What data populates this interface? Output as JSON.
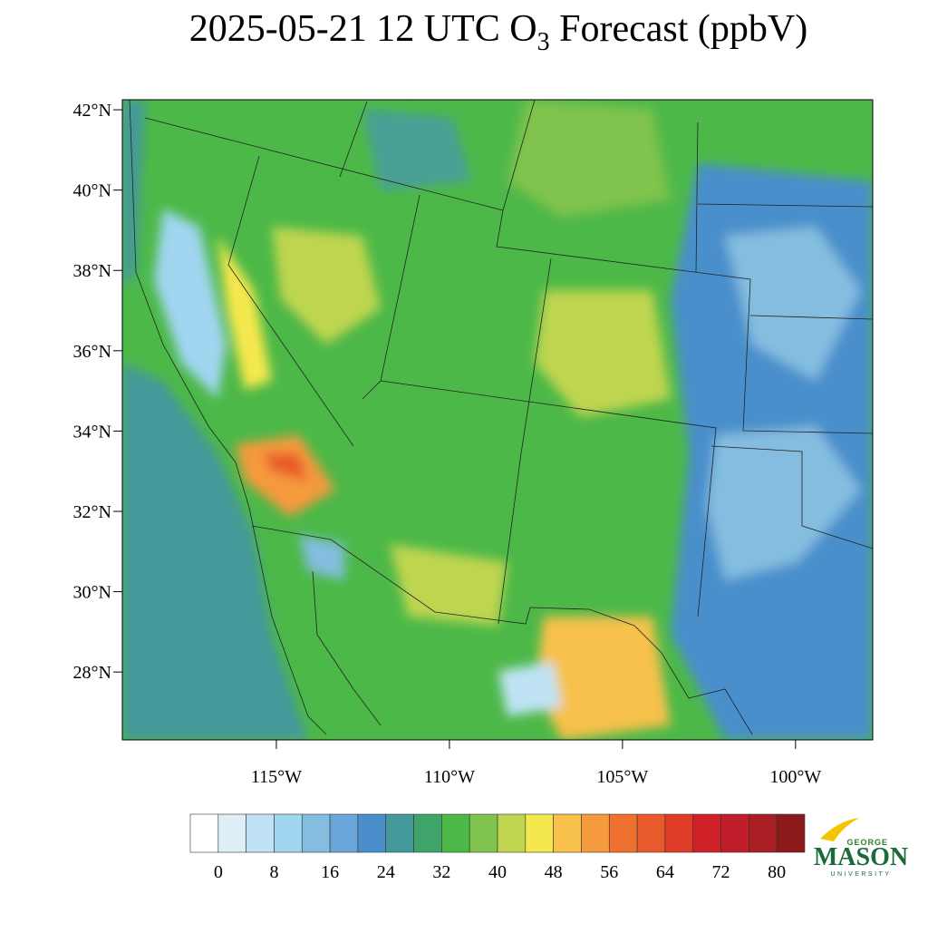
{
  "chart_data": {
    "type": "map",
    "title": {
      "main": "2025-05-21 12 UTC O",
      "sub": "3",
      "rest": " Forecast (ppbV)"
    },
    "xlim": [
      -119.45,
      -97.77
    ],
    "ylim": [
      26.31,
      42.25
    ],
    "xticks": [
      {
        "value": -115,
        "label": "115°W"
      },
      {
        "value": -110,
        "label": "110°W"
      },
      {
        "value": -105,
        "label": "105°W"
      },
      {
        "value": -100,
        "label": "100°W"
      }
    ],
    "yticks": [
      {
        "value": 28,
        "label": "28°N"
      },
      {
        "value": 30,
        "label": "30°N"
      },
      {
        "value": 32,
        "label": "32°N"
      },
      {
        "value": 34,
        "label": "34°N"
      },
      {
        "value": 36,
        "label": "36°N"
      },
      {
        "value": 38,
        "label": "38°N"
      },
      {
        "value": 40,
        "label": "40°N"
      },
      {
        "value": 42,
        "label": "42°N"
      }
    ],
    "colorbar": {
      "lim": [
        -4,
        84
      ],
      "ticks": [
        0,
        8,
        16,
        24,
        32,
        40,
        48,
        56,
        64,
        72,
        80
      ],
      "colors": [
        "#ffffff",
        "#deeff8",
        "#bfe3f5",
        "#a0d6f0",
        "#84bde0",
        "#6aa6da",
        "#4a8fcb",
        "#44999a",
        "#3fa46a",
        "#4cb848",
        "#80c34e",
        "#bfd54f",
        "#f5e84e",
        "#f7c14c",
        "#f59a3d",
        "#f0702f",
        "#e85a2c",
        "#df3d28",
        "#d02028",
        "#bf1e2a",
        "#a91e23",
        "#8c1a1a"
      ]
    },
    "logo": {
      "top": "GEORGE",
      "main": "MASON",
      "bottom": "UNIVERSITY"
    }
  }
}
